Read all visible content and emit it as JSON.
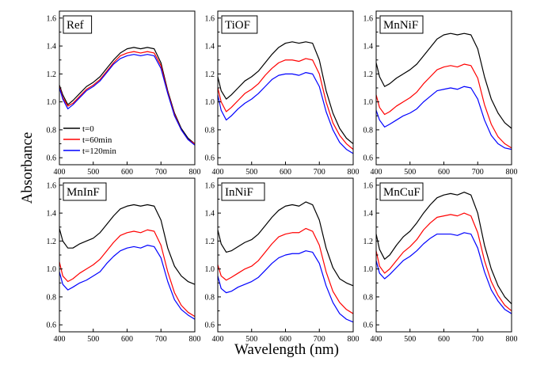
{
  "chart_data": {
    "type": "line",
    "xlabel": "Wavelength (nm)",
    "ylabel": "Absorbance",
    "legend": {
      "placement": "left",
      "entries": [
        {
          "name": "t=0",
          "color": "#000000"
        },
        {
          "name": "t=60min",
          "color": "#ff0000"
        },
        {
          "name": "t=120min",
          "color": "#0000ff"
        }
      ]
    },
    "panels": [
      {
        "title": "Ref",
        "xlim": [
          400,
          800
        ],
        "ylim": [
          0.55,
          1.65
        ],
        "xticks": [
          400,
          500,
          600,
          700,
          800
        ],
        "yticks": [
          0.6,
          0.8,
          1.0,
          1.2,
          1.4,
          1.6
        ],
        "x": [
          400,
          410,
          425,
          440,
          460,
          480,
          500,
          520,
          540,
          560,
          580,
          600,
          620,
          640,
          660,
          680,
          700,
          720,
          740,
          760,
          780,
          800
        ],
        "series": [
          {
            "name": "t=0",
            "values": [
              1.12,
              1.05,
              0.98,
              1.01,
              1.06,
              1.11,
              1.14,
              1.18,
              1.24,
              1.3,
              1.35,
              1.38,
              1.39,
              1.38,
              1.39,
              1.38,
              1.28,
              1.08,
              0.92,
              0.81,
              0.74,
              0.7
            ]
          },
          {
            "name": "t=60min",
            "values": [
              1.11,
              1.03,
              0.97,
              0.99,
              1.04,
              1.09,
              1.12,
              1.16,
              1.22,
              1.28,
              1.33,
              1.35,
              1.36,
              1.35,
              1.36,
              1.35,
              1.26,
              1.07,
              0.91,
              0.8,
              0.73,
              0.7
            ]
          },
          {
            "name": "t=120min",
            "values": [
              1.1,
              1.02,
              0.95,
              0.98,
              1.03,
              1.08,
              1.11,
              1.15,
              1.21,
              1.27,
              1.31,
              1.33,
              1.34,
              1.33,
              1.34,
              1.33,
              1.24,
              1.06,
              0.9,
              0.8,
              0.73,
              0.69
            ]
          }
        ]
      },
      {
        "title": "TiOF",
        "xlim": [
          400,
          800
        ],
        "ylim": [
          0.55,
          1.65
        ],
        "xticks": [
          400,
          500,
          600,
          700,
          800
        ],
        "yticks": [
          0.6,
          0.8,
          1.0,
          1.2,
          1.4,
          1.6
        ],
        "x": [
          400,
          410,
          425,
          440,
          460,
          480,
          500,
          520,
          540,
          560,
          580,
          600,
          620,
          640,
          660,
          680,
          700,
          720,
          740,
          760,
          780,
          800
        ],
        "series": [
          {
            "name": "t=0",
            "values": [
              1.18,
              1.08,
              1.02,
              1.05,
              1.1,
              1.15,
              1.18,
              1.22,
              1.28,
              1.34,
              1.39,
              1.42,
              1.43,
              1.42,
              1.43,
              1.42,
              1.3,
              1.08,
              0.92,
              0.81,
              0.74,
              0.7
            ]
          },
          {
            "name": "t=60min",
            "values": [
              1.1,
              1.0,
              0.93,
              0.96,
              1.01,
              1.06,
              1.09,
              1.13,
              1.19,
              1.24,
              1.28,
              1.3,
              1.3,
              1.29,
              1.31,
              1.3,
              1.2,
              1.0,
              0.85,
              0.76,
              0.7,
              0.66
            ]
          },
          {
            "name": "t=120min",
            "values": [
              1.05,
              0.94,
              0.87,
              0.9,
              0.95,
              0.99,
              1.02,
              1.06,
              1.11,
              1.16,
              1.19,
              1.2,
              1.2,
              1.19,
              1.21,
              1.2,
              1.11,
              0.93,
              0.8,
              0.71,
              0.66,
              0.63
            ]
          }
        ]
      },
      {
        "title": "MnNiF",
        "xlim": [
          400,
          800
        ],
        "ylim": [
          0.55,
          1.65
        ],
        "xticks": [
          400,
          500,
          600,
          700,
          800
        ],
        "yticks": [
          0.6,
          0.8,
          1.0,
          1.2,
          1.4,
          1.6
        ],
        "x": [
          400,
          410,
          425,
          440,
          460,
          480,
          500,
          520,
          540,
          560,
          580,
          600,
          620,
          640,
          660,
          680,
          700,
          720,
          740,
          760,
          780,
          800
        ],
        "series": [
          {
            "name": "t=0",
            "values": [
              1.28,
              1.18,
              1.11,
              1.13,
              1.17,
              1.2,
              1.23,
              1.27,
              1.33,
              1.39,
              1.45,
              1.48,
              1.49,
              1.48,
              1.49,
              1.48,
              1.38,
              1.18,
              1.02,
              0.92,
              0.85,
              0.81
            ]
          },
          {
            "name": "t=60min",
            "values": [
              1.05,
              0.96,
              0.91,
              0.93,
              0.97,
              1.0,
              1.03,
              1.07,
              1.13,
              1.18,
              1.23,
              1.25,
              1.26,
              1.25,
              1.27,
              1.26,
              1.17,
              0.98,
              0.84,
              0.75,
              0.7,
              0.67
            ]
          },
          {
            "name": "t=120min",
            "values": [
              0.94,
              0.87,
              0.82,
              0.84,
              0.87,
              0.9,
              0.92,
              0.95,
              1.0,
              1.04,
              1.08,
              1.09,
              1.1,
              1.09,
              1.11,
              1.1,
              1.02,
              0.87,
              0.76,
              0.7,
              0.67,
              0.66
            ]
          }
        ]
      },
      {
        "title": "MnInF",
        "xlim": [
          400,
          800
        ],
        "ylim": [
          0.55,
          1.65
        ],
        "xticks": [
          400,
          500,
          600,
          700,
          800
        ],
        "yticks": [
          0.6,
          0.8,
          1.0,
          1.2,
          1.4,
          1.6
        ],
        "x": [
          400,
          410,
          425,
          440,
          460,
          480,
          500,
          520,
          540,
          560,
          580,
          600,
          620,
          640,
          660,
          680,
          700,
          720,
          740,
          760,
          780,
          800
        ],
        "series": [
          {
            "name": "t=0",
            "values": [
              1.29,
              1.2,
              1.15,
              1.15,
              1.18,
              1.2,
              1.22,
              1.26,
              1.32,
              1.38,
              1.43,
              1.45,
              1.46,
              1.45,
              1.46,
              1.45,
              1.35,
              1.15,
              1.02,
              0.95,
              0.91,
              0.89
            ]
          },
          {
            "name": "t=60min",
            "values": [
              1.05,
              0.95,
              0.91,
              0.93,
              0.97,
              1.0,
              1.03,
              1.07,
              1.13,
              1.19,
              1.24,
              1.26,
              1.27,
              1.26,
              1.28,
              1.27,
              1.17,
              0.98,
              0.83,
              0.74,
              0.69,
              0.66
            ]
          },
          {
            "name": "t=120min",
            "values": [
              0.98,
              0.89,
              0.85,
              0.87,
              0.9,
              0.92,
              0.95,
              0.98,
              1.04,
              1.09,
              1.13,
              1.15,
              1.16,
              1.15,
              1.17,
              1.16,
              1.08,
              0.91,
              0.78,
              0.71,
              0.67,
              0.64
            ]
          }
        ]
      },
      {
        "title": "InNiF",
        "xlim": [
          400,
          800
        ],
        "ylim": [
          0.55,
          1.65
        ],
        "xticks": [
          400,
          500,
          600,
          700,
          800
        ],
        "yticks": [
          0.6,
          0.8,
          1.0,
          1.2,
          1.4,
          1.6
        ],
        "x": [
          400,
          410,
          425,
          440,
          460,
          480,
          500,
          520,
          540,
          560,
          580,
          600,
          620,
          640,
          660,
          680,
          700,
          720,
          740,
          760,
          780,
          800
        ],
        "series": [
          {
            "name": "t=0",
            "values": [
              1.28,
              1.18,
              1.12,
              1.13,
              1.16,
              1.19,
              1.21,
              1.25,
              1.31,
              1.37,
              1.42,
              1.45,
              1.46,
              1.45,
              1.48,
              1.46,
              1.35,
              1.15,
              1.01,
              0.93,
              0.9,
              0.88
            ]
          },
          {
            "name": "t=60min",
            "values": [
              1.03,
              0.95,
              0.92,
              0.94,
              0.97,
              1.0,
              1.02,
              1.06,
              1.12,
              1.18,
              1.23,
              1.25,
              1.26,
              1.26,
              1.29,
              1.27,
              1.17,
              0.98,
              0.84,
              0.76,
              0.71,
              0.68
            ]
          },
          {
            "name": "t=120min",
            "values": [
              0.95,
              0.86,
              0.83,
              0.84,
              0.87,
              0.89,
              0.91,
              0.94,
              0.99,
              1.04,
              1.08,
              1.1,
              1.11,
              1.11,
              1.13,
              1.12,
              1.04,
              0.88,
              0.76,
              0.68,
              0.64,
              0.62
            ]
          }
        ]
      },
      {
        "title": "MnCuF",
        "xlim": [
          400,
          800
        ],
        "ylim": [
          0.55,
          1.65
        ],
        "xticks": [
          400,
          500,
          600,
          700,
          800
        ],
        "yticks": [
          0.6,
          0.8,
          1.0,
          1.2,
          1.4,
          1.6
        ],
        "x": [
          400,
          410,
          425,
          440,
          460,
          480,
          500,
          520,
          540,
          560,
          580,
          600,
          620,
          640,
          660,
          680,
          700,
          720,
          740,
          760,
          780,
          800
        ],
        "series": [
          {
            "name": "t=0",
            "values": [
              1.25,
              1.14,
              1.07,
              1.1,
              1.17,
              1.23,
              1.27,
              1.33,
              1.4,
              1.46,
              1.51,
              1.53,
              1.54,
              1.53,
              1.55,
              1.53,
              1.4,
              1.17,
              1.0,
              0.88,
              0.8,
              0.75
            ]
          },
          {
            "name": "t=60min",
            "values": [
              1.13,
              1.02,
              0.97,
              1.0,
              1.06,
              1.12,
              1.16,
              1.21,
              1.28,
              1.33,
              1.37,
              1.38,
              1.39,
              1.38,
              1.4,
              1.38,
              1.26,
              1.06,
              0.91,
              0.81,
              0.74,
              0.7
            ]
          },
          {
            "name": "t=120min",
            "values": [
              1.06,
              0.97,
              0.93,
              0.96,
              1.01,
              1.06,
              1.09,
              1.13,
              1.18,
              1.22,
              1.25,
              1.25,
              1.25,
              1.24,
              1.26,
              1.25,
              1.15,
              0.98,
              0.85,
              0.77,
              0.71,
              0.68
            ]
          }
        ]
      }
    ]
  }
}
